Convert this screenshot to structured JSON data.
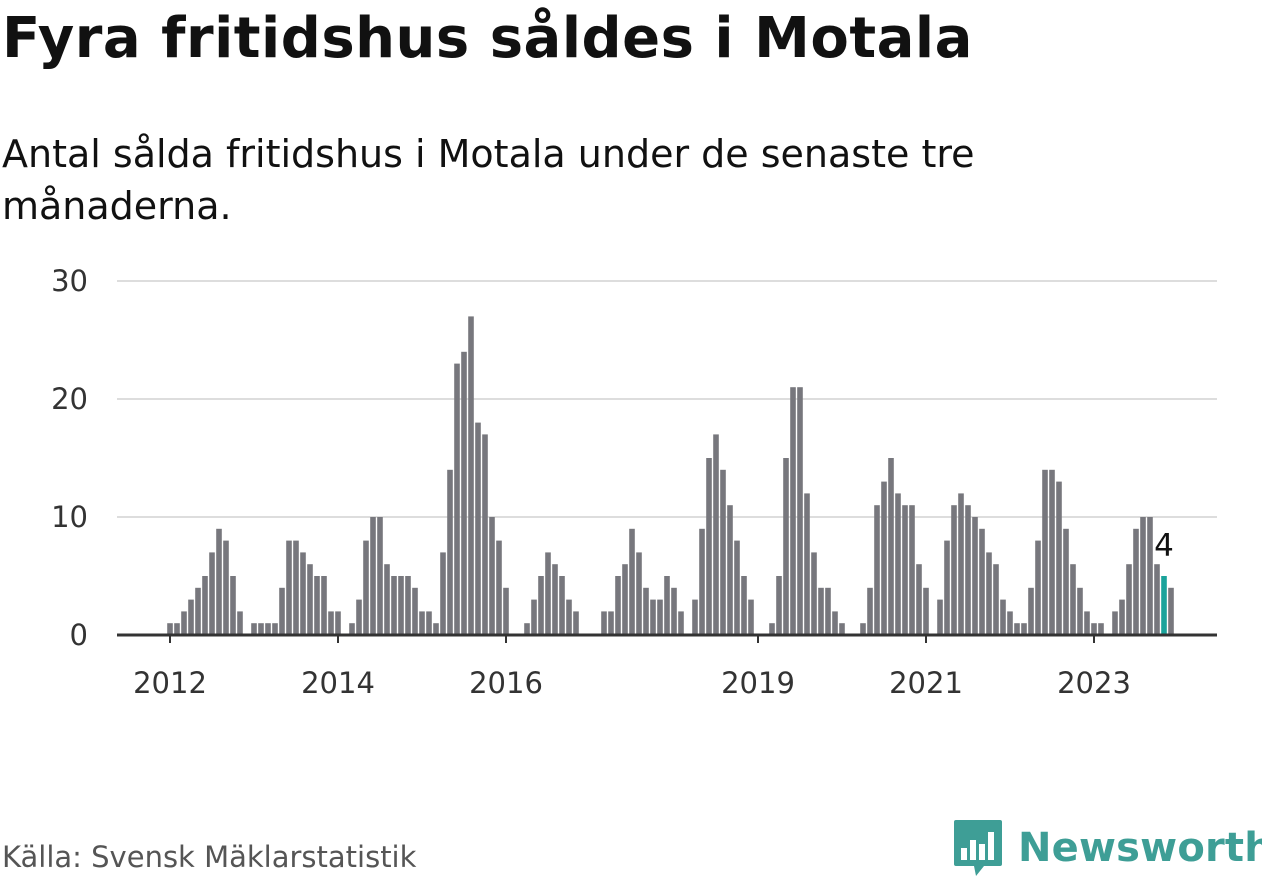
{
  "title": "Fyra fritidshus såldes i Motala",
  "subtitle": "Antal sålda fritidshus i Motala under de senaste tre månaderna.",
  "source": "Källa: Svensk Mäklarstatistik",
  "brand": {
    "name": "Newsworthy",
    "color": "#3e9e96"
  },
  "colors": {
    "bar": "#77777d",
    "highlight": "#1aa39b",
    "grid": "#dddddd",
    "axis": "#333333"
  },
  "chart_data": {
    "type": "bar",
    "title": "Fyra fritidshus såldes i Motala",
    "subtitle": "Antal sålda fritidshus i Motala under de senaste tre månaderna.",
    "xlabel": "",
    "ylabel": "",
    "ylim": [
      0,
      30
    ],
    "yticks": [
      "0",
      "10",
      "20",
      "30"
    ],
    "xticks": [
      "2012",
      "2014",
      "2016",
      "2019",
      "2021",
      "2023"
    ],
    "grid": true,
    "x_start": "2012-01",
    "series": [
      {
        "values": [
          1,
          1,
          2,
          3,
          4,
          5,
          7,
          9,
          8,
          5,
          2,
          0,
          1,
          1,
          1,
          1,
          4,
          8,
          8,
          7,
          6,
          5,
          5,
          2,
          2,
          0,
          1,
          3,
          8,
          10,
          10,
          6,
          5,
          5,
          5,
          4,
          2,
          2,
          1,
          7,
          14,
          23,
          24,
          27,
          18,
          17,
          10,
          8,
          4,
          0,
          0,
          1,
          3,
          5,
          7,
          6,
          5,
          3,
          2,
          0,
          0,
          0,
          2,
          2,
          5,
          6,
          9,
          7,
          4,
          3,
          3,
          5,
          4,
          2,
          0,
          3,
          9,
          15,
          17,
          14,
          11,
          8,
          5,
          3,
          0,
          0,
          1,
          5,
          15,
          21,
          21,
          12,
          7,
          4,
          4,
          2,
          1,
          0,
          0,
          1,
          4,
          11,
          13,
          15,
          12,
          11,
          11,
          6,
          4,
          0,
          3,
          8,
          11,
          12,
          11,
          10,
          9,
          7,
          6,
          3,
          2,
          1,
          1,
          4,
          8,
          14,
          14,
          13,
          9,
          6,
          4,
          2,
          1,
          1,
          0,
          2,
          3,
          6,
          9,
          10,
          10,
          6,
          5,
          4
        ]
      }
    ],
    "annotation": {
      "label": "4",
      "index": 142
    }
  }
}
